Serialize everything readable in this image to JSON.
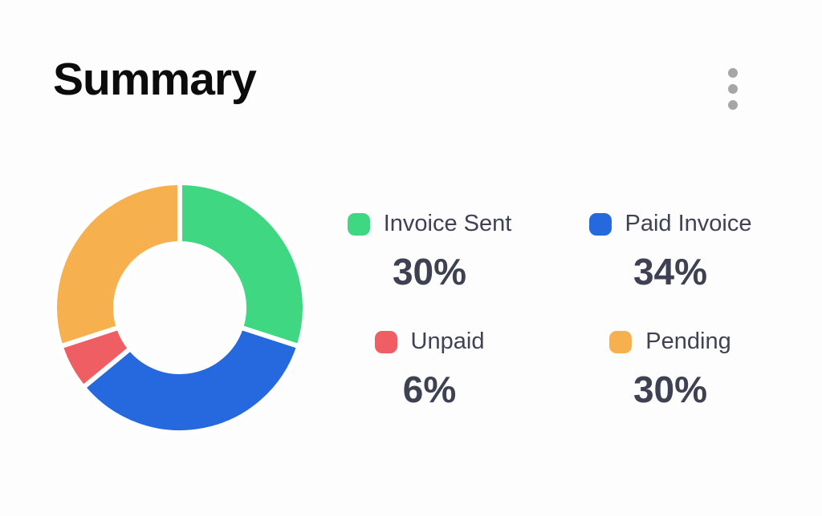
{
  "header": {
    "title": "Summary"
  },
  "chart_data": {
    "type": "pie",
    "subtype": "donut",
    "title": "Summary",
    "categories": [
      "Invoice Sent",
      "Paid Invoice",
      "Unpaid",
      "Pending"
    ],
    "values": [
      30,
      34,
      6,
      30
    ],
    "unit": "%",
    "colors": [
      "#40d782",
      "#2669de",
      "#ee5e63",
      "#f6b14e"
    ],
    "start_angle_deg": 0,
    "direction": "clockwise",
    "inner_radius_ratio": 0.51,
    "segment_gap_color": "#ffffff",
    "legend_position": "right"
  },
  "legend": {
    "items": [
      {
        "label": "Invoice Sent",
        "value": "30%",
        "color": "#40d782"
      },
      {
        "label": "Paid Invoice",
        "value": "34%",
        "color": "#2669de"
      },
      {
        "label": "Unpaid",
        "value": "6%",
        "color": "#ee5e63"
      },
      {
        "label": "Pending",
        "value": "30%",
        "color": "#f6b14e"
      }
    ]
  },
  "colors": {
    "background": "#fdfdfd",
    "title_text": "#0c0c0c",
    "legend_label_text": "#3f4254",
    "legend_value_text": "#3d4152",
    "menu_dots": "#a6a6a6"
  }
}
